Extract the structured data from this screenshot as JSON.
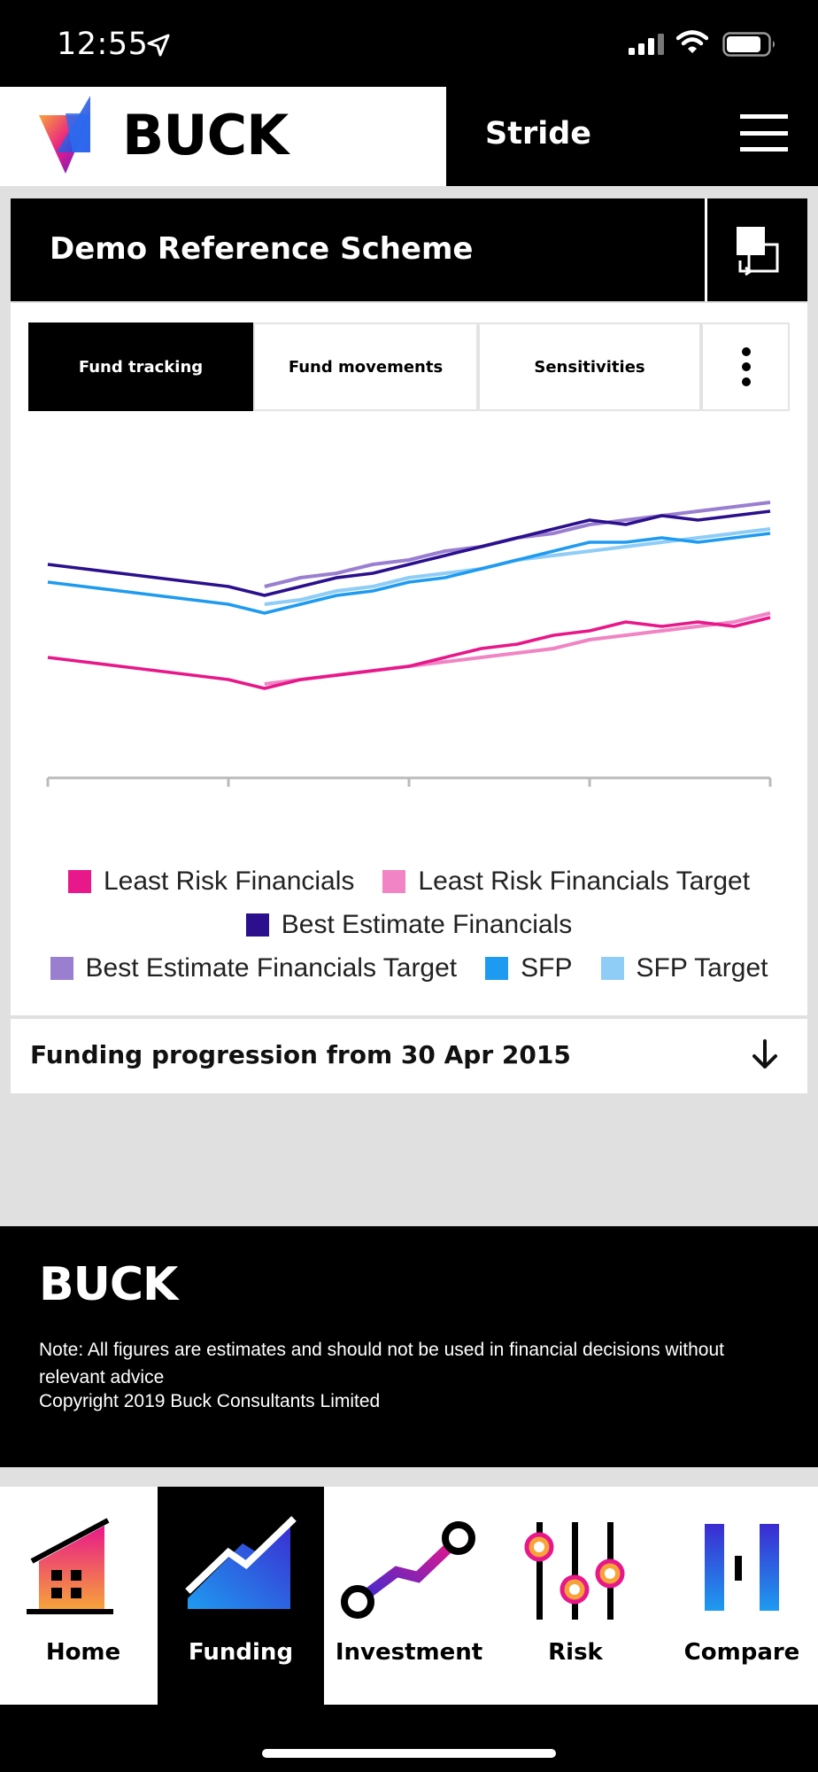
{
  "status_bar": {
    "time": "12:55"
  },
  "header": {
    "logo": "BUCK",
    "app_name": "Stride"
  },
  "scheme": {
    "title": "Demo Reference Scheme"
  },
  "tabs": [
    {
      "label": "Fund tracking",
      "active": true
    },
    {
      "label": "Fund movements",
      "active": false
    },
    {
      "label": "Sensitivities",
      "active": false
    }
  ],
  "chart_data": {
    "type": "line",
    "title": "",
    "xlabel": "",
    "ylabel": "",
    "grid": false,
    "legend_position": "bottom",
    "x": [
      0,
      1,
      2,
      3,
      4,
      5,
      6,
      7,
      8,
      9,
      10,
      11,
      12,
      13,
      14,
      15,
      16,
      17,
      18,
      19,
      20
    ],
    "series": [
      {
        "name": "Least Risk Financials",
        "color": "#e8178a",
        "values": [
          70,
          69,
          68,
          67,
          66,
          65,
          63,
          65,
          66,
          67,
          68,
          70,
          72,
          73,
          75,
          76,
          78,
          77,
          78,
          77,
          79
        ]
      },
      {
        "name": "Least Risk Financials Target",
        "color": "#f084c4",
        "values": [
          null,
          null,
          null,
          null,
          null,
          null,
          64,
          65,
          66,
          67,
          68,
          69,
          70,
          71,
          72,
          74,
          75,
          76,
          77,
          78,
          80
        ]
      },
      {
        "name": "Best Estimate Financials",
        "color": "#2b0f8c",
        "values": [
          91,
          90,
          89,
          88,
          87,
          86,
          84,
          86,
          88,
          89,
          91,
          93,
          95,
          97,
          99,
          101,
          100,
          102,
          101,
          102,
          103
        ]
      },
      {
        "name": "Best Estimate Financials Target",
        "color": "#9a7fd1",
        "values": [
          null,
          null,
          null,
          null,
          null,
          null,
          86,
          88,
          89,
          91,
          92,
          94,
          95,
          97,
          98,
          100,
          101,
          102,
          103,
          104,
          105
        ]
      },
      {
        "name": "SFP",
        "color": "#1e9bf0",
        "values": [
          87,
          86,
          85,
          84,
          83,
          82,
          80,
          82,
          84,
          85,
          87,
          88,
          90,
          92,
          94,
          96,
          96,
          97,
          96,
          97,
          98
        ]
      },
      {
        "name": "SFP Target",
        "color": "#8fcdf7",
        "values": [
          null,
          null,
          null,
          null,
          null,
          null,
          82,
          83,
          85,
          86,
          88,
          89,
          90,
          92,
          93,
          94,
          95,
          96,
          97,
          98,
          99
        ]
      }
    ],
    "ylim": [
      40,
      120
    ]
  },
  "legend": {
    "rows": [
      [
        "Least Risk Financials",
        "Least Risk Financials Target"
      ],
      [
        "Best Estimate Financials"
      ],
      [
        "Best Estimate Financials Target",
        "SFP",
        "SFP Target"
      ]
    ]
  },
  "progression": {
    "label": "Funding progression from 30 Apr 2015"
  },
  "footer": {
    "logo": "BUCK",
    "note": "Note: All figures are estimates and should not be used in financial decisions without relevant advice",
    "copyright": "Copyright 2019 Buck Consultants Limited"
  },
  "nav": [
    {
      "label": "Home",
      "icon": "home-icon",
      "active": false
    },
    {
      "label": "Funding",
      "icon": "funding-icon",
      "active": true
    },
    {
      "label": "Investment",
      "icon": "investment-icon",
      "active": false
    },
    {
      "label": "Risk",
      "icon": "risk-icon",
      "active": false
    },
    {
      "label": "Compare",
      "icon": "compare-icon",
      "active": false
    }
  ]
}
